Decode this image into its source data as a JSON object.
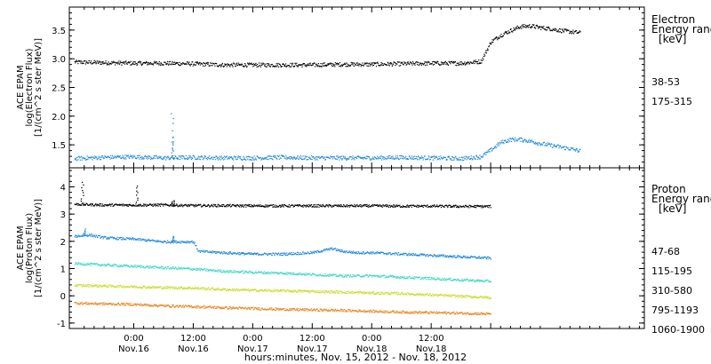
{
  "chart_data": [
    {
      "type": "scatter",
      "panel": "electron",
      "ylabel": [
        "ACE EPAM",
        "log(Electron Flux)",
        "[1/(cm^2 s ster MeV)]"
      ],
      "ylim": [
        1.1,
        3.9
      ],
      "yticks": [
        1.5,
        2.0,
        2.5,
        3.0,
        3.5
      ],
      "ytick_labels": [
        "1.5",
        "2.0",
        "2.5",
        "3.0",
        "3.5"
      ],
      "legend_title": [
        "Electron",
        "Energy range",
        "[keV]"
      ],
      "series": [
        {
          "name": "38-53",
          "color": "#000000",
          "x": [
            -12,
            -6,
            0,
            6,
            12,
            18,
            24,
            30,
            36,
            42,
            48,
            54,
            60,
            66,
            70,
            72,
            74,
            76,
            78,
            80,
            82,
            84,
            86,
            88,
            90
          ],
          "y": [
            2.95,
            2.94,
            2.93,
            2.93,
            2.92,
            2.9,
            2.9,
            2.9,
            2.9,
            2.91,
            2.91,
            2.92,
            2.93,
            2.93,
            2.96,
            3.3,
            3.42,
            3.5,
            3.57,
            3.58,
            3.55,
            3.53,
            3.5,
            3.48,
            3.46
          ]
        },
        {
          "name": "175-315",
          "color": "#1e88d8",
          "x": [
            -12,
            -6,
            0,
            6,
            12,
            18,
            24,
            30,
            36,
            42,
            48,
            54,
            60,
            66,
            70,
            72,
            74,
            76,
            78,
            80,
            82,
            84,
            86,
            88,
            90
          ],
          "y": [
            1.27,
            1.29,
            1.3,
            1.28,
            1.29,
            1.28,
            1.28,
            1.29,
            1.28,
            1.28,
            1.28,
            1.29,
            1.28,
            1.27,
            1.3,
            1.42,
            1.55,
            1.6,
            1.6,
            1.57,
            1.53,
            1.5,
            1.47,
            1.44,
            1.4
          ]
        }
      ],
      "spikes": [
        {
          "series": "175-315",
          "x": 7.7,
          "y": 2.05
        },
        {
          "series": "175-315",
          "x": 7.8,
          "y": 1.62
        }
      ]
    },
    {
      "type": "scatter",
      "panel": "proton",
      "xlabel": "hours:minutes, Nov. 15, 2012 - Nov. 18, 2012",
      "ylabel": [
        "ACE EPAM",
        "log(Proton Flux)",
        "[1/(cm^2 s ster MeV)]"
      ],
      "ylim": [
        -1.2,
        4.7
      ],
      "yticks": [
        -1,
        0,
        1,
        2,
        3,
        4
      ],
      "ytick_labels": [
        "-1",
        "0",
        "1",
        "2",
        "3",
        "4"
      ],
      "xlim": [
        -13,
        103
      ],
      "xticks": [
        0,
        12,
        24,
        36,
        48,
        60,
        72
      ],
      "xtick_labels": [
        [
          "0:00",
          "Nov.16"
        ],
        [
          "12:00",
          "Nov.16"
        ],
        [
          "0:00",
          "Nov.17"
        ],
        [
          "12:00",
          "Nov.17"
        ],
        [
          "0:00",
          "Nov.18"
        ],
        [
          "12:00",
          "Nov.18"
        ]
      ],
      "xtick_label_positions": [
        0,
        12,
        24,
        36,
        48,
        60
      ],
      "legend_title": [
        "Proton",
        "Energy range",
        "[keV]"
      ],
      "series": [
        {
          "name": "47-68",
          "color": "#000000",
          "x": [
            -12,
            -6,
            0,
            6,
            12,
            18,
            24,
            30,
            36,
            42,
            48,
            54,
            60,
            66,
            72
          ],
          "y": [
            3.38,
            3.35,
            3.35,
            3.35,
            3.33,
            3.33,
            3.32,
            3.32,
            3.32,
            3.32,
            3.32,
            3.31,
            3.31,
            3.3,
            3.3
          ]
        },
        {
          "name": "115-195",
          "color": "#1e88d8",
          "x": [
            -12,
            -9,
            -6,
            -3,
            0,
            3,
            6,
            9,
            12,
            13,
            18,
            24,
            30,
            36,
            40,
            42,
            45,
            48,
            54,
            60,
            66,
            72
          ],
          "y": [
            2.2,
            2.25,
            2.15,
            2.12,
            2.1,
            2.05,
            2.0,
            2.0,
            2.0,
            1.65,
            1.6,
            1.55,
            1.55,
            1.6,
            1.75,
            1.65,
            1.6,
            1.6,
            1.55,
            1.5,
            1.45,
            1.4
          ]
        },
        {
          "name": "310-580",
          "color": "#3dd6c8",
          "x": [
            -12,
            -6,
            0,
            6,
            12,
            18,
            24,
            30,
            36,
            42,
            48,
            54,
            60,
            66,
            72
          ],
          "y": [
            1.2,
            1.15,
            1.1,
            1.05,
            1.0,
            0.92,
            0.88,
            0.85,
            0.8,
            0.75,
            0.75,
            0.7,
            0.65,
            0.6,
            0.55
          ]
        },
        {
          "name": "795-1193",
          "color": "#c8dc28",
          "x": [
            -12,
            -6,
            0,
            6,
            12,
            18,
            24,
            30,
            36,
            42,
            48,
            54,
            60,
            66,
            72
          ],
          "y": [
            0.4,
            0.38,
            0.35,
            0.32,
            0.3,
            0.25,
            0.22,
            0.2,
            0.18,
            0.15,
            0.12,
            0.1,
            0.05,
            0.0,
            -0.05
          ]
        },
        {
          "name": "1060-1900",
          "color": "#e8861e",
          "x": [
            -12,
            -6,
            0,
            6,
            12,
            18,
            24,
            30,
            36,
            42,
            48,
            54,
            60,
            66,
            72
          ],
          "y": [
            -0.25,
            -0.28,
            -0.3,
            -0.35,
            -0.38,
            -0.42,
            -0.45,
            -0.48,
            -0.5,
            -0.52,
            -0.55,
            -0.58,
            -0.6,
            -0.62,
            -0.65
          ]
        }
      ],
      "spikes": [
        {
          "series": "47-68",
          "x": -10.5,
          "y": 4.2
        },
        {
          "series": "47-68",
          "x": 0.5,
          "y": 4.05
        },
        {
          "series": "47-68",
          "x": 7.8,
          "y": 3.5
        },
        {
          "series": "115-195",
          "x": -10,
          "y": 2.45
        },
        {
          "series": "115-195",
          "x": 7.8,
          "y": 2.2
        }
      ]
    }
  ]
}
